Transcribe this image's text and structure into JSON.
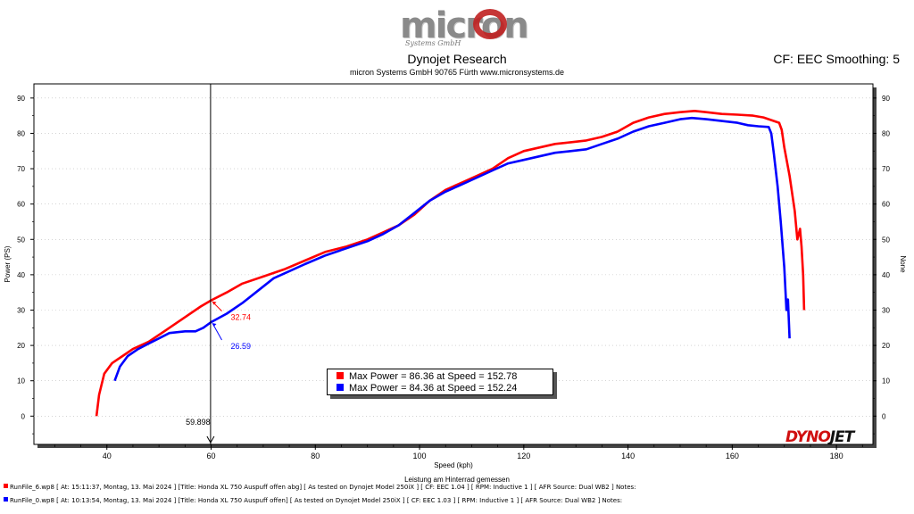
{
  "header": {
    "logo_word": "micron",
    "logo_sub": "Systems GmbH",
    "title": "Dynojet Research",
    "subtitle": "micron Systems GmbH  90765 Fürth www.micronsystems.de",
    "cf": "CF: EEC Smoothing: 5"
  },
  "legend": {
    "entries": [
      {
        "text": "Max Power = 86.36 at Speed = 152.78",
        "color": "#ff0000"
      },
      {
        "text": "Max Power = 84.36 at Speed = 152.24",
        "color": "#0000ff"
      }
    ]
  },
  "footer": {
    "note": "Leistung am Hinterrad gemessen",
    "runs": [
      {
        "text": "RunFile_6.wp8 [ At: 15:11:37, Montag, 13. Mai 2024 ] [Title: Honda XL 750 Auspuff offen abg]  [ As tested on Dynojet Model 250iX ] [ CF: EEC 1.04 ] [ RPM: Inductive 1 ] [ AFR Source: Dual WB2 ] Notes:",
        "color": "#ff0000"
      },
      {
        "text": "RunFile_0.wp8 [ At: 10:13:54, Montag, 13. Mai 2024 ] [Title: Honda XL 750 Auspuff offen]  [ As tested on Dynojet Model 250iX ] [ CF: EEC 1.03 ] [ RPM: Inductive 1 ] [ AFR Source: Dual WB2 ] Notes:",
        "color": "#0000ff"
      }
    ]
  },
  "brand": {
    "dyno": "DYNO",
    "jet": "JET"
  },
  "chart_data": {
    "type": "line",
    "title": "Dynojet Research",
    "xlabel": "Speed (kph)",
    "ylabel": "Power (PS)",
    "ylabel_right": "None",
    "xlim": [
      26,
      187
    ],
    "ylim": [
      -8,
      94
    ],
    "x_ticks": [
      40,
      60,
      80,
      100,
      120,
      140,
      160,
      180
    ],
    "y_ticks": [
      0,
      10,
      20,
      30,
      40,
      50,
      60,
      70,
      80,
      90
    ],
    "cursor": {
      "x": 59.898,
      "label": "59.898"
    },
    "annotations": [
      {
        "series": 0,
        "x": 60,
        "y": 32.74,
        "label": "32.74"
      },
      {
        "series": 1,
        "x": 60,
        "y": 26.59,
        "label": "26.59"
      }
    ],
    "series": [
      {
        "name": "RunFile_6.wp8",
        "color": "#ff0000",
        "points": [
          [
            38,
            0
          ],
          [
            38.5,
            6
          ],
          [
            39.5,
            12
          ],
          [
            41,
            15
          ],
          [
            43,
            17
          ],
          [
            45,
            19
          ],
          [
            48,
            21
          ],
          [
            51,
            24
          ],
          [
            55,
            28
          ],
          [
            58,
            31
          ],
          [
            60,
            32.74
          ],
          [
            63,
            35
          ],
          [
            66,
            37.5
          ],
          [
            70,
            39.5
          ],
          [
            74,
            41.5
          ],
          [
            78,
            44
          ],
          [
            82,
            46.5
          ],
          [
            86,
            48
          ],
          [
            90,
            50
          ],
          [
            93,
            52
          ],
          [
            96,
            54
          ],
          [
            99,
            57
          ],
          [
            102,
            61
          ],
          [
            105,
            64
          ],
          [
            108,
            66
          ],
          [
            111,
            68
          ],
          [
            114,
            70
          ],
          [
            117,
            73
          ],
          [
            120,
            75
          ],
          [
            123,
            76
          ],
          [
            126,
            77
          ],
          [
            129,
            77.5
          ],
          [
            132,
            78
          ],
          [
            135,
            79
          ],
          [
            138,
            80.5
          ],
          [
            141,
            83
          ],
          [
            144,
            84.5
          ],
          [
            147,
            85.5
          ],
          [
            150,
            86
          ],
          [
            152.78,
            86.36
          ],
          [
            155,
            86
          ],
          [
            158,
            85.5
          ],
          [
            161,
            85.3
          ],
          [
            164,
            85
          ],
          [
            166,
            84.5
          ],
          [
            168,
            83.5
          ],
          [
            169,
            83
          ],
          [
            169.5,
            81
          ],
          [
            170,
            76
          ],
          [
            171,
            68
          ],
          [
            172,
            58
          ],
          [
            172.5,
            50
          ],
          [
            173,
            53
          ],
          [
            173.3,
            48
          ],
          [
            173.6,
            40
          ],
          [
            173.8,
            30
          ]
        ]
      },
      {
        "name": "RunFile_0.wp8",
        "color": "#0000ff",
        "points": [
          [
            41.5,
            10
          ],
          [
            42.5,
            14
          ],
          [
            44,
            17
          ],
          [
            46,
            19
          ],
          [
            48,
            20.5
          ],
          [
            50,
            22
          ],
          [
            52,
            23.5
          ],
          [
            55,
            24
          ],
          [
            57,
            24
          ],
          [
            58.5,
            25
          ],
          [
            60,
            26.59
          ],
          [
            63,
            29
          ],
          [
            66,
            32
          ],
          [
            69,
            35.5
          ],
          [
            72,
            39
          ],
          [
            75,
            41
          ],
          [
            78,
            43
          ],
          [
            82,
            45.5
          ],
          [
            86,
            47.5
          ],
          [
            90,
            49.5
          ],
          [
            93,
            51.5
          ],
          [
            96,
            54
          ],
          [
            99,
            57.5
          ],
          [
            102,
            61
          ],
          [
            105,
            63.5
          ],
          [
            108,
            65.5
          ],
          [
            111,
            67.5
          ],
          [
            114,
            69.5
          ],
          [
            117,
            71.5
          ],
          [
            120,
            72.5
          ],
          [
            123,
            73.5
          ],
          [
            126,
            74.5
          ],
          [
            129,
            75
          ],
          [
            132,
            75.5
          ],
          [
            135,
            77
          ],
          [
            138,
            78.5
          ],
          [
            141,
            80.5
          ],
          [
            144,
            82
          ],
          [
            147,
            83
          ],
          [
            150,
            84
          ],
          [
            152.24,
            84.36
          ],
          [
            155,
            84
          ],
          [
            158,
            83.5
          ],
          [
            161,
            83
          ],
          [
            163,
            82.3
          ],
          [
            165,
            82
          ],
          [
            167,
            81.8
          ],
          [
            167.5,
            80
          ],
          [
            168,
            74
          ],
          [
            168.7,
            65
          ],
          [
            169.3,
            55
          ],
          [
            170,
            42
          ],
          [
            170.4,
            30
          ],
          [
            170.7,
            33
          ],
          [
            171,
            22
          ]
        ]
      }
    ]
  }
}
